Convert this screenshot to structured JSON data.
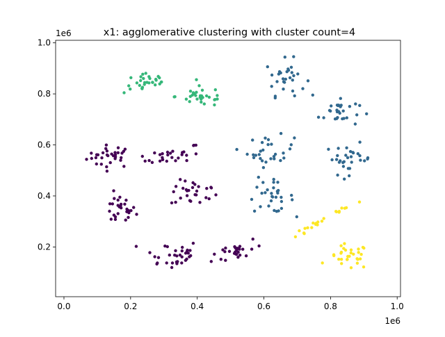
{
  "chart_data": {
    "type": "scatter",
    "title": "x1: agglomerative clustering with cluster count=4",
    "xlabel": "",
    "ylabel": "",
    "x_offset_label": "1e6",
    "y_offset_label": "1e6",
    "xlim": [
      -0.025,
      1.01
    ],
    "ylim": [
      0.005,
      1.01
    ],
    "x_ticks": [
      0.0,
      0.2,
      0.4,
      0.6,
      0.8,
      1.0
    ],
    "x_tick_labels": [
      "0.0",
      "0.2",
      "0.4",
      "0.6",
      "0.8",
      "1.0"
    ],
    "y_ticks": [
      0.2,
      0.4,
      0.6,
      0.8,
      1.0
    ],
    "y_tick_labels": [
      "0.2",
      "0.4",
      "0.6",
      "0.8",
      "1.0"
    ],
    "grid": false,
    "legend": "none",
    "series": [
      {
        "color": "#440154",
        "cluster_id": 0,
        "blobs": [
          {
            "center": [
              0.14,
              0.555
            ],
            "spread": [
              0.035,
              0.022
            ],
            "n": 32
          },
          {
            "center": [
              0.33,
              0.56
            ],
            "spread": [
              0.045,
              0.015
            ],
            "n": 28,
            "tilt": 0.25
          },
          {
            "center": [
              0.165,
              0.345
            ],
            "spread": [
              0.025,
              0.03
            ],
            "n": 28
          },
          {
            "center": [
              0.39,
              0.41
            ],
            "spread": [
              0.035,
              0.025
            ],
            "n": 28
          },
          {
            "center": [
              0.32,
              0.17
            ],
            "spread": [
              0.045,
              0.03
            ],
            "n": 32
          },
          {
            "center": [
              0.52,
              0.185
            ],
            "spread": [
              0.04,
              0.02
            ],
            "n": 28,
            "tilt": 0.3
          }
        ]
      },
      {
        "color": "#31688e",
        "cluster_id": 1,
        "blobs": [
          {
            "center": [
              0.665,
              0.865
            ],
            "spread": [
              0.03,
              0.035
            ],
            "n": 30
          },
          {
            "center": [
              0.825,
              0.73
            ],
            "spread": [
              0.03,
              0.03
            ],
            "n": 28
          },
          {
            "center": [
              0.62,
              0.575
            ],
            "spread": [
              0.035,
              0.03
            ],
            "n": 30
          },
          {
            "center": [
              0.855,
              0.545
            ],
            "spread": [
              0.035,
              0.03
            ],
            "n": 30
          },
          {
            "center": [
              0.62,
              0.395
            ],
            "spread": [
              0.035,
              0.03
            ],
            "n": 30
          }
        ]
      },
      {
        "color": "#35b779",
        "cluster_id": 2,
        "blobs": [
          {
            "center": [
              0.25,
              0.845
            ],
            "spread": [
              0.035,
              0.022
            ],
            "n": 30
          },
          {
            "center": [
              0.415,
              0.79
            ],
            "spread": [
              0.04,
              0.02
            ],
            "n": 30
          }
        ]
      },
      {
        "color": "#fde725",
        "cluster_id": 3,
        "blobs": [
          {
            "center": [
              0.8,
              0.32
            ],
            "spread": [
              0.006,
              0.07
            ],
            "n": 22,
            "tilt": 2.2
          },
          {
            "center": [
              0.855,
              0.16
            ],
            "spread": [
              0.03,
              0.025
            ],
            "n": 30
          }
        ]
      }
    ]
  }
}
